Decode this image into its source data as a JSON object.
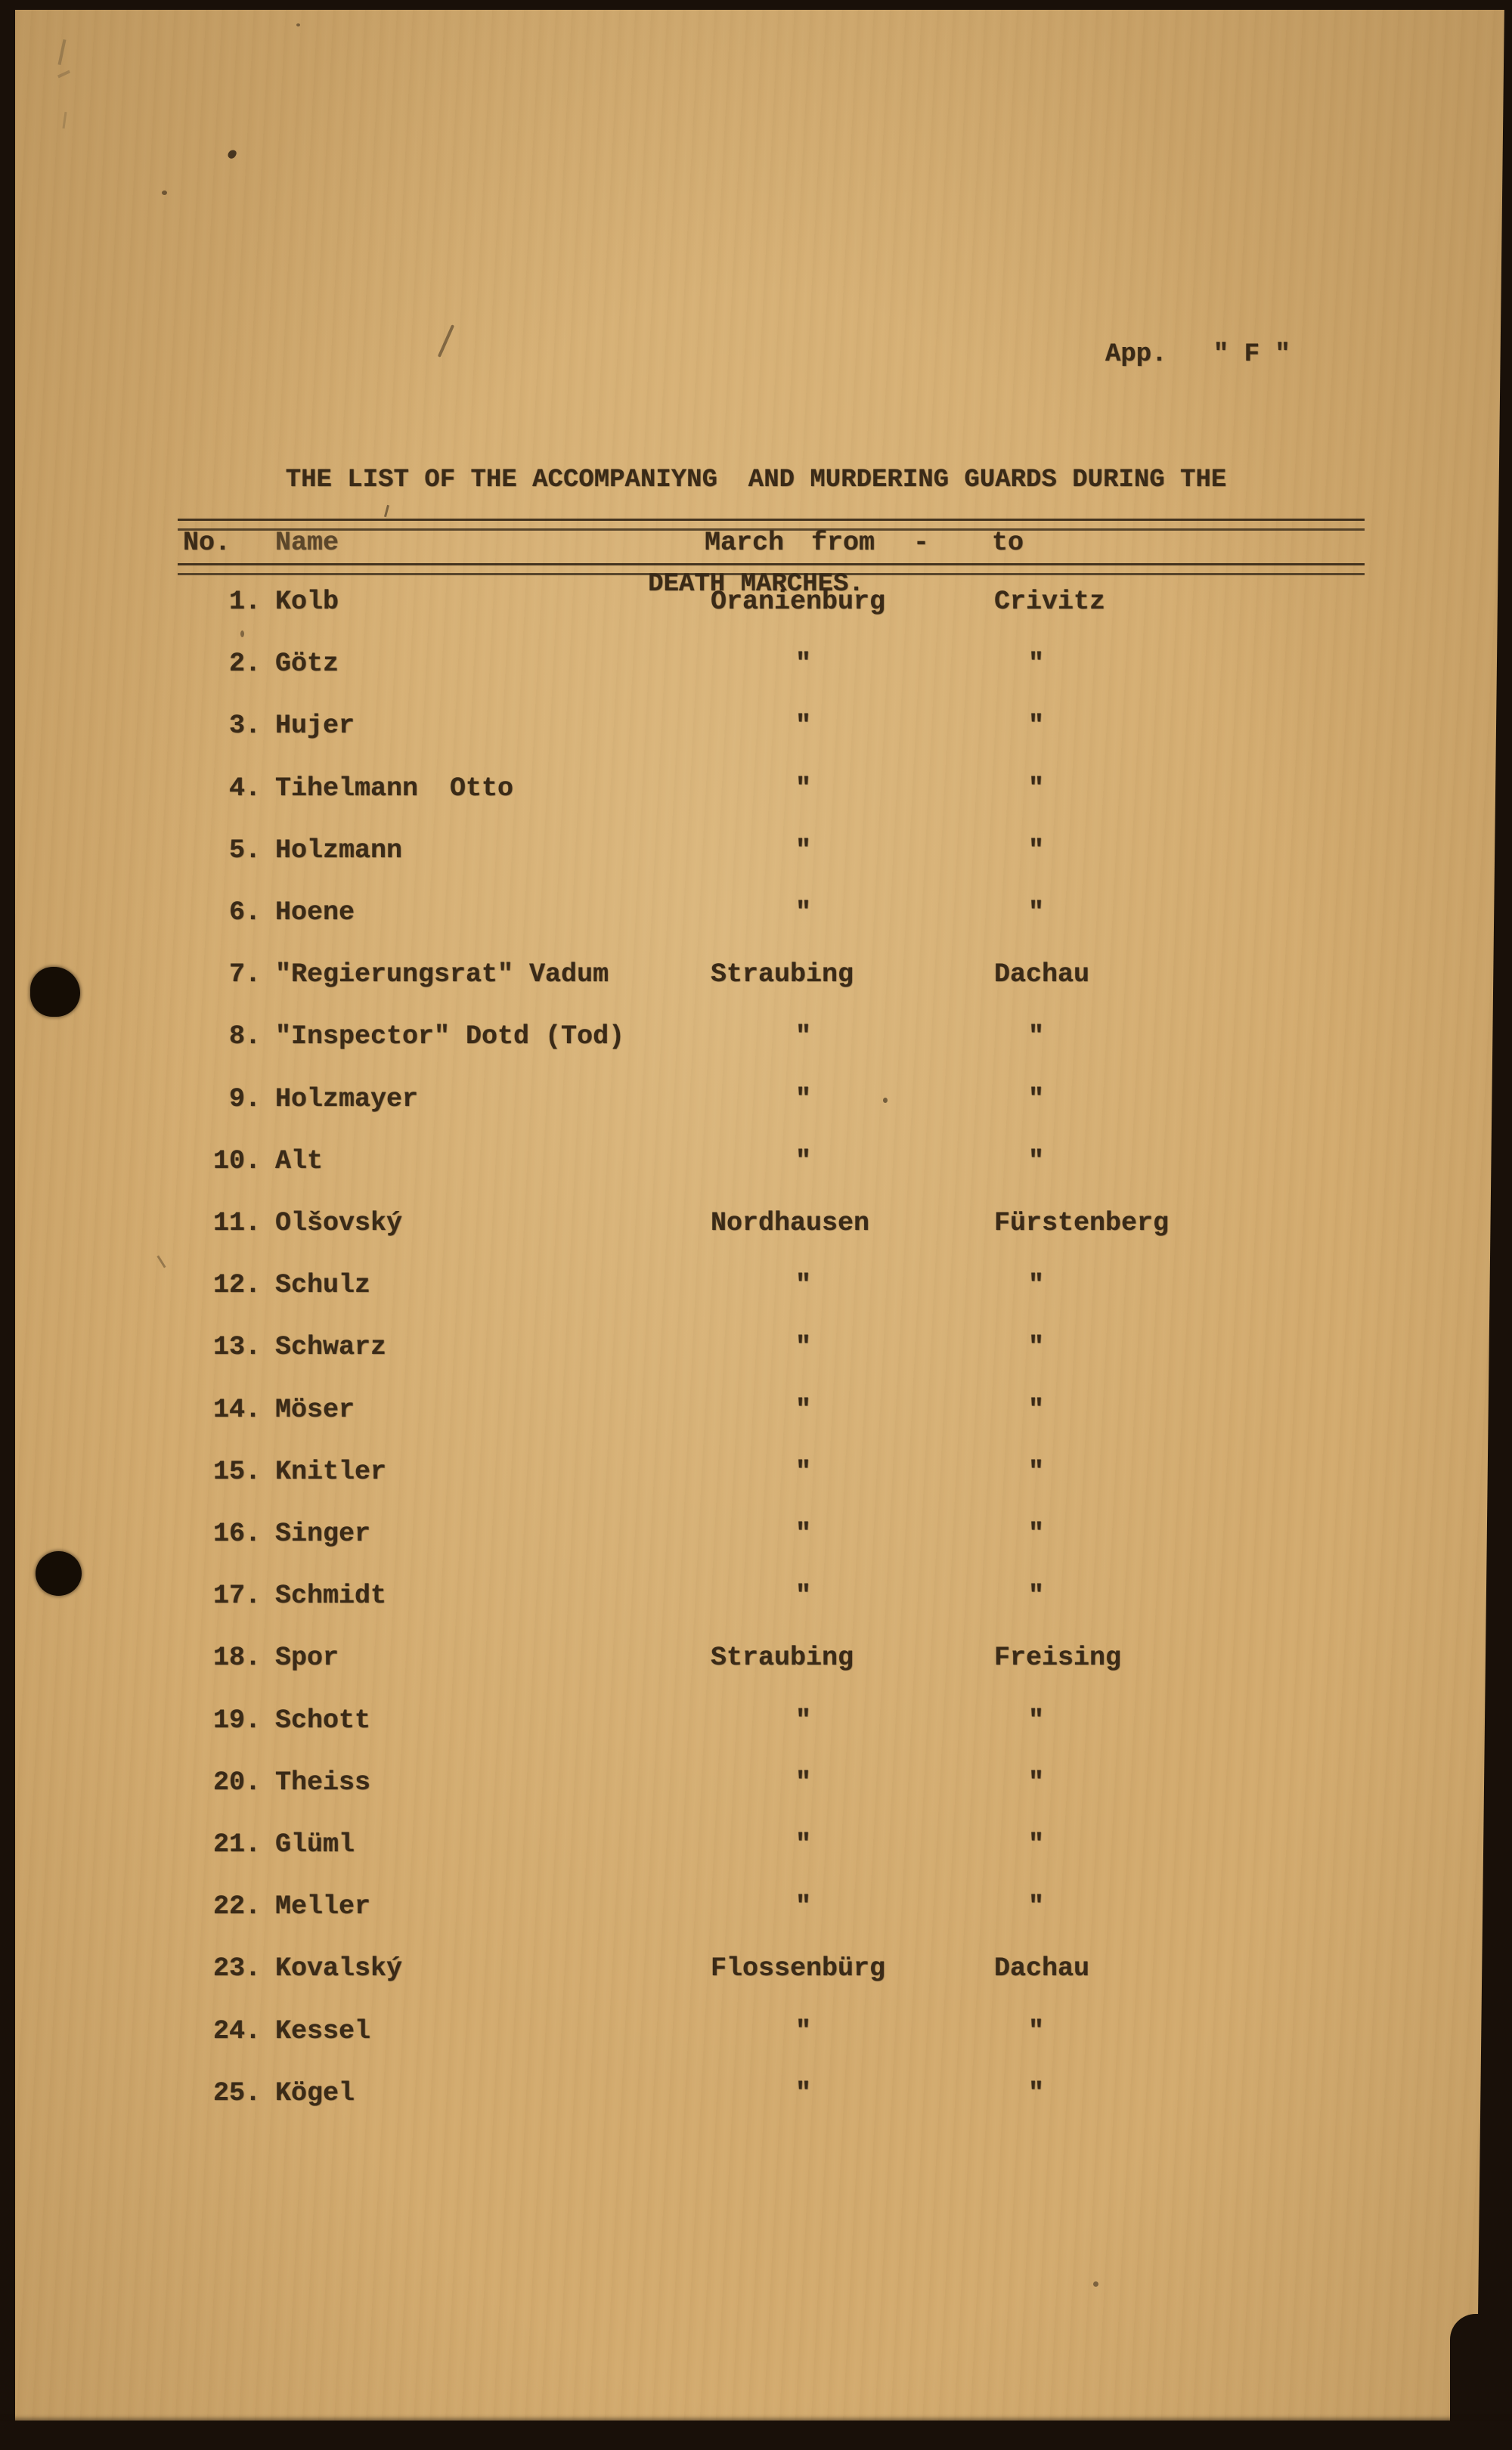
{
  "page": {
    "app_label": "App.   \" F \"",
    "title_line1": "THE LIST OF THE ACCOMPANIYNG  AND MURDERING GUARDS DURING THE",
    "title_line2": "DEATH MARCHES."
  },
  "table": {
    "headers": {
      "no": "No.",
      "name": "Name",
      "march": "March",
      "from": "from",
      "dash": "-",
      "to": "to"
    },
    "ditto_mark": "\"",
    "rows": [
      {
        "no": "1.",
        "name": "Kolb",
        "from": "Oranienburg",
        "to": "Crivitz"
      },
      {
        "no": "2.",
        "name": "Götz",
        "from": "\"",
        "to": "\""
      },
      {
        "no": "3.",
        "name": "Hujer",
        "from": "\"",
        "to": "\""
      },
      {
        "no": "4.",
        "name": "Tihelmann  Otto",
        "from": "\"",
        "to": "\""
      },
      {
        "no": "5.",
        "name": "Holzmann",
        "from": "\"",
        "to": "\""
      },
      {
        "no": "6.",
        "name": "Hoene",
        "from": "\"",
        "to": "\""
      },
      {
        "no": "7.",
        "name": "\"Regierungsrat\" Vadum",
        "from": "Straubing",
        "to": "Dachau"
      },
      {
        "no": "8.",
        "name": "\"Inspector\" Dotd (Tod)",
        "from": "\"",
        "to": "\""
      },
      {
        "no": "9.",
        "name": "Holzmayer",
        "from": "\"",
        "to": "\""
      },
      {
        "no": "10.",
        "name": "Alt",
        "from": "\"",
        "to": "\""
      },
      {
        "no": "11.",
        "name": "Olšovský",
        "from": "Nordhausen",
        "to": "Fürstenberg"
      },
      {
        "no": "12.",
        "name": "Schulz",
        "from": "\"",
        "to": "\""
      },
      {
        "no": "13.",
        "name": "Schwarz",
        "from": "\"",
        "to": "\""
      },
      {
        "no": "14.",
        "name": "Möser",
        "from": "\"",
        "to": "\""
      },
      {
        "no": "15.",
        "name": "Knitler",
        "from": "\"",
        "to": "\""
      },
      {
        "no": "16.",
        "name": "Singer",
        "from": "\"",
        "to": "\""
      },
      {
        "no": "17.",
        "name": "Schmidt",
        "from": "\"",
        "to": "\""
      },
      {
        "no": "18.",
        "name": "Spor",
        "from": "Straubing",
        "to": "Freising"
      },
      {
        "no": "19.",
        "name": "Schott",
        "from": "\"",
        "to": "\""
      },
      {
        "no": "20.",
        "name": "Theiss",
        "from": "\"",
        "to": "\""
      },
      {
        "no": "21.",
        "name": "Glüml",
        "from": "\"",
        "to": "\""
      },
      {
        "no": "22.",
        "name": "Meller",
        "from": "\"",
        "to": "\""
      },
      {
        "no": "23.",
        "name": "Kovalský",
        "from": "Flossenbürg",
        "to": "Dachau"
      },
      {
        "no": "24.",
        "name": "Kessel",
        "from": "\"",
        "to": "\""
      },
      {
        "no": "25.",
        "name": "Kögel",
        "from": "\"",
        "to": "\""
      }
    ]
  }
}
